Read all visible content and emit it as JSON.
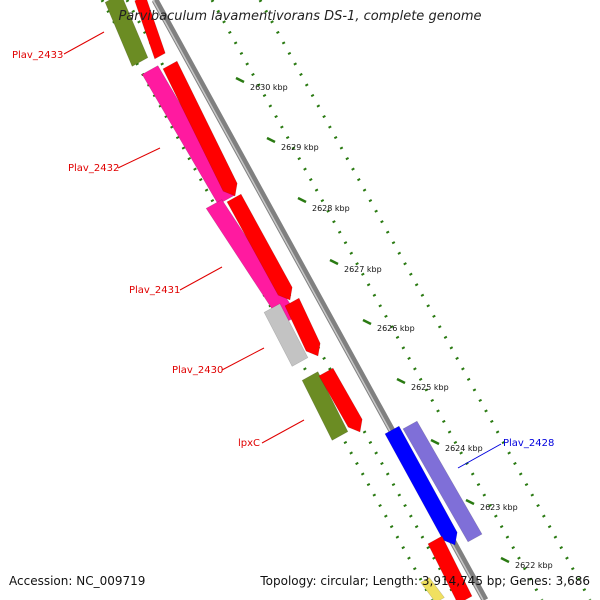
{
  "title": "Parvibaculum lavamentivorans DS-1, complete genome",
  "accession": "Accession: NC_009719",
  "summary": "Topology: circular; Length: 3,914,745 bp; Genes: 3,686",
  "colors": {
    "backbone": "#808080",
    "ticks": "#2a7a12",
    "forward_red": "#ff0000",
    "label_red": "#e00000",
    "label_blue": "#0000dd",
    "magenta": "#ff1aa0",
    "olive": "#6b8c23",
    "gray": "#c3c3c3",
    "blue": "#0000ff",
    "purple": "#7f6fd8"
  },
  "kbp_labels": [
    "2630 kbp",
    "2629 kbp",
    "2628 kbp",
    "2627 kbp",
    "2626 kbp",
    "2625 kbp",
    "2624 kbp",
    "2623 kbp",
    "2622 kbp"
  ],
  "gene_labels": [
    "Plav_2433",
    "Plav_2432",
    "Plav_2431",
    "Plav_2430",
    "lpxC",
    "Plav_2428"
  ]
}
